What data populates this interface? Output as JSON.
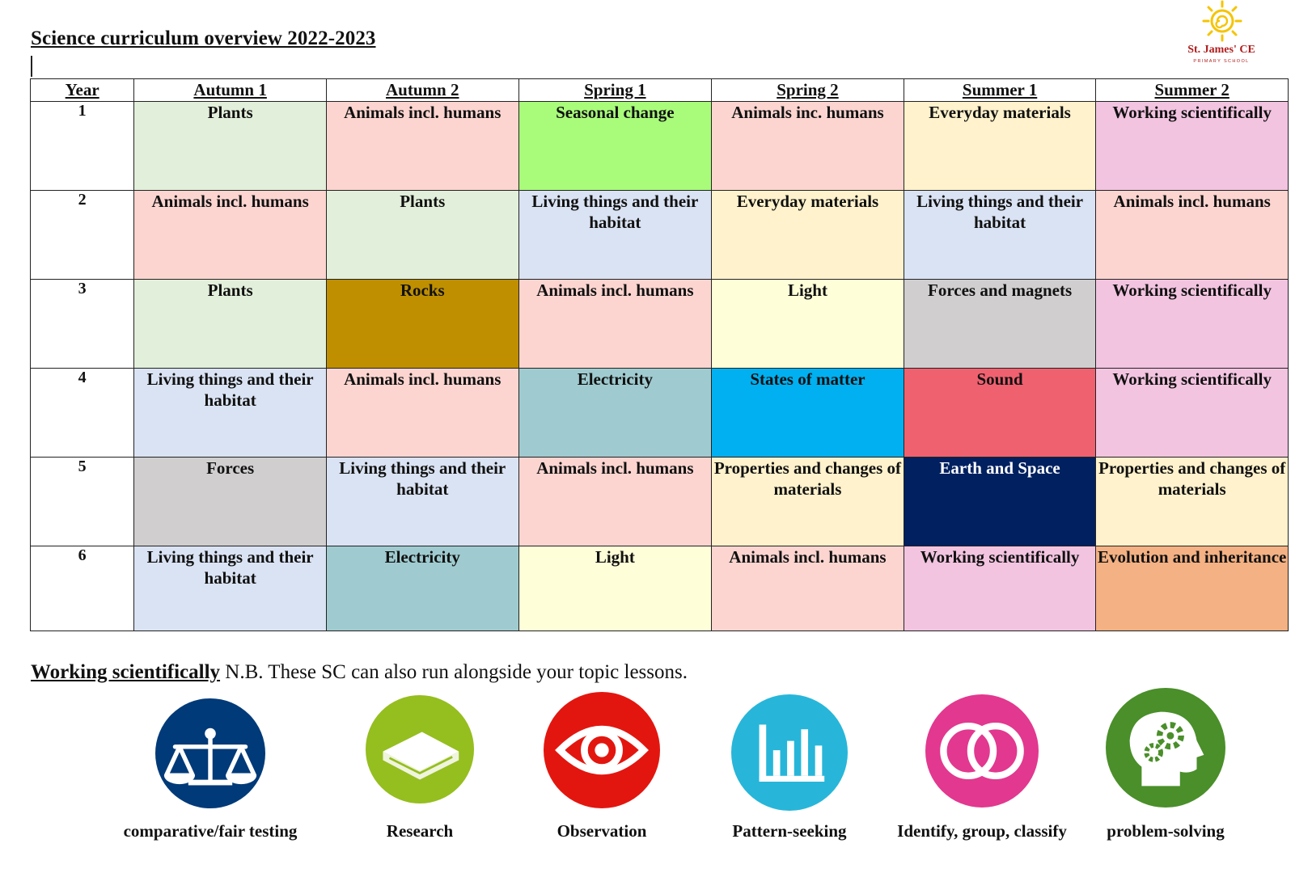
{
  "doc": {
    "title": "Science curriculum overview 2022-2023"
  },
  "logo": {
    "name": "St. James' CE",
    "subtitle": "PRIMARY SCHOOL"
  },
  "table": {
    "headers": [
      "Year",
      "Autumn 1",
      "Autumn 2",
      "Spring 1",
      "Spring 2",
      "Summer 1",
      "Summer 2"
    ],
    "rows": [
      {
        "year": "1",
        "cells": [
          {
            "text": "Plants",
            "color": "#e2efda"
          },
          {
            "text": "Animals incl. humans",
            "color": "#fcd5d0"
          },
          {
            "text": "Seasonal change",
            "color": "#a9fc7a"
          },
          {
            "text": "Animals inc. humans",
            "color": "#fcd5d0"
          },
          {
            "text": "Everyday materials",
            "color": "#fff2cc"
          },
          {
            "text": "Working scientifically",
            "color": "#f2c4e0"
          }
        ]
      },
      {
        "year": "2",
        "cells": [
          {
            "text": "Animals incl. humans",
            "color": "#fcd5d0"
          },
          {
            "text": "Plants",
            "color": "#e2efda"
          },
          {
            "text": "Living things and their habitat",
            "color": "#dae3f3"
          },
          {
            "text": "Everyday materials",
            "color": "#fff2cc"
          },
          {
            "text": "Living things and their habitat",
            "color": "#dae3f3"
          },
          {
            "text": "Animals incl. humans",
            "color": "#fcd5d0"
          }
        ]
      },
      {
        "year": "3",
        "cells": [
          {
            "text": "Plants",
            "color": "#e2efda"
          },
          {
            "text": "Rocks",
            "color": "#bf8f00"
          },
          {
            "text": "Animals incl. humans",
            "color": "#fcd5d0"
          },
          {
            "text": "Light",
            "color": "#fefed8"
          },
          {
            "text": "Forces and magnets",
            "color": "#d0cece"
          },
          {
            "text": "Working scientifically",
            "color": "#f2c4e0"
          }
        ]
      },
      {
        "year": "4",
        "cells": [
          {
            "text": "Living things and their habitat",
            "color": "#dae3f3"
          },
          {
            "text": "Animals incl. humans",
            "color": "#fcd5d0"
          },
          {
            "text": "Electricity",
            "color": "#9fcbd0"
          },
          {
            "text": "States of matter",
            "color": "#00b0f0"
          },
          {
            "text": "Sound",
            "color": "#f06170"
          },
          {
            "text": "Working scientifically",
            "color": "#f2c4e0"
          }
        ]
      },
      {
        "year": "5",
        "cells": [
          {
            "text": "Forces",
            "color": "#d0cece"
          },
          {
            "text": "Living things and their habitat",
            "color": "#dae3f3"
          },
          {
            "text": "Animals incl. humans",
            "color": "#fcd5d0"
          },
          {
            "text": "Properties and changes of materials",
            "color": "#fff2cc"
          },
          {
            "text": "Earth and Space",
            "color": "#002060",
            "textColor": "#ffffff"
          },
          {
            "text": "Properties and changes of materials",
            "color": "#fff2cc"
          }
        ]
      },
      {
        "year": "6",
        "cells": [
          {
            "text": "Living things and their habitat",
            "color": "#dae3f3"
          },
          {
            "text": "Electricity",
            "color": "#9fcbd0"
          },
          {
            "text": "Light",
            "color": "#fefed8"
          },
          {
            "text": "Animals incl. humans",
            "color": "#fcd5d0"
          },
          {
            "text": "Working scientifically",
            "color": "#f2c4e0"
          },
          {
            "text": "Evolution and inheritance",
            "color": "#f4b183"
          }
        ]
      }
    ]
  },
  "working_scientifically": {
    "title": "Working scientifically",
    "note": " N.B. These SC can also run alongside your topic lessons."
  },
  "skills": [
    {
      "label": "comparative/fair testing",
      "icon": "scales-icon",
      "color": "#003a78"
    },
    {
      "label": "Research",
      "icon": "book-icon",
      "color": "#95be1f"
    },
    {
      "label": "Observation",
      "icon": "eye-icon",
      "color": "#e3160f"
    },
    {
      "label": "Pattern-seeking",
      "icon": "bar-chart-icon",
      "color": "#27b6d9"
    },
    {
      "label": "Identify, group, classify",
      "icon": "venn-icon",
      "color": "#e2388f"
    },
    {
      "label": "problem-solving",
      "icon": "head-gears-icon",
      "color": "#4a8f2a"
    }
  ]
}
